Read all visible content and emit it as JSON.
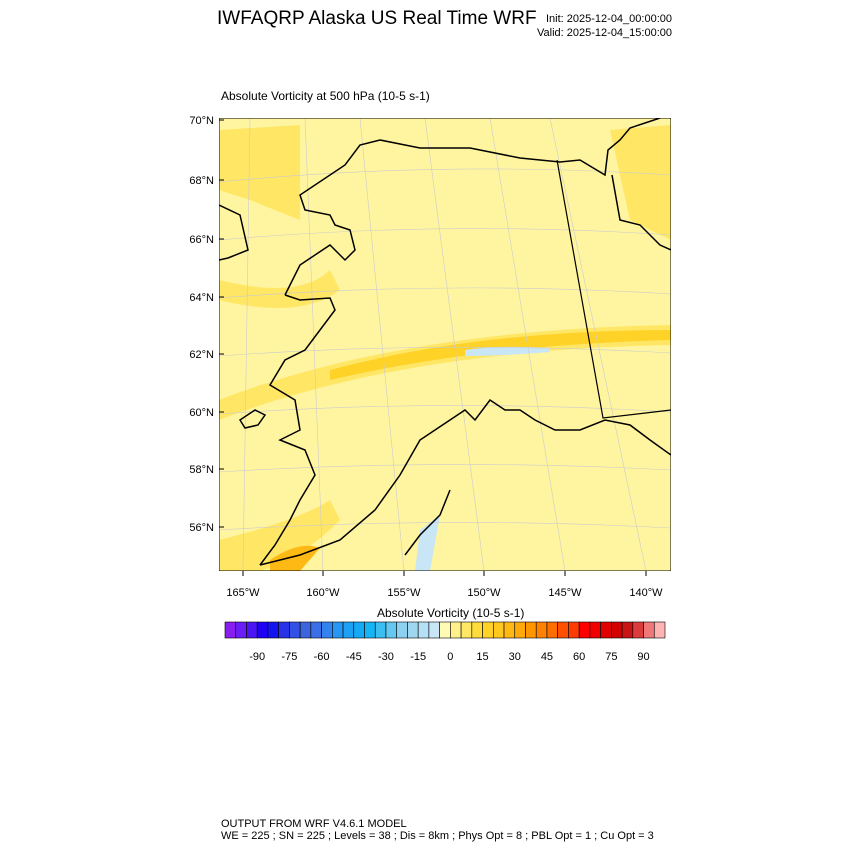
{
  "header": {
    "title": "IWFAQRP Alaska US Real Time WRF",
    "init": "Init: 2025-12-04_00:00:00",
    "valid": "Valid: 2025-12-04_15:00:00"
  },
  "map": {
    "subtitle": "Absolute Vorticity at 500 hPa   (10-5 s-1)",
    "lat_labels": [
      "70°N",
      "68°N",
      "66°N",
      "64°N",
      "62°N",
      "60°N",
      "58°N",
      "56°N"
    ],
    "lon_labels": [
      "165°W",
      "160°W",
      "155°W",
      "150°W",
      "145°W",
      "140°W"
    ],
    "background_color": "#fff5a0",
    "band_colors": [
      "#ffe664",
      "#ffd228",
      "#ffb914",
      "#c8e6f5"
    ]
  },
  "colorbar": {
    "title": "Absolute Vorticity  (10-5 s-1)",
    "labels": [
      "-90",
      "-75",
      "-60",
      "-45",
      "-30",
      "-15",
      "0",
      "15",
      "30",
      "45",
      "60",
      "75",
      "90"
    ],
    "colors": [
      "#8a1ef0",
      "#6a1ef5",
      "#4a14f5",
      "#1e00f5",
      "#1414f0",
      "#2832e6",
      "#3250e6",
      "#3c64dc",
      "#3c6ee6",
      "#3282f0",
      "#2896f5",
      "#1ea0f5",
      "#14aaf5",
      "#14b4f5",
      "#3cbef0",
      "#64c8f0",
      "#8cd2f0",
      "#a0d7f0",
      "#b4e1f5",
      "#c8e6f5",
      "#fffab4",
      "#fff08c",
      "#ffe664",
      "#ffdc3c",
      "#ffd228",
      "#ffc81e",
      "#ffb914",
      "#ffaa0a",
      "#ff9600",
      "#ff8200",
      "#ff6e00",
      "#ff5000",
      "#ff3c00",
      "#ff0000",
      "#f00000",
      "#e10000",
      "#d20000",
      "#c81414",
      "#dc3c3c",
      "#f07878",
      "#ffb4b4"
    ]
  },
  "footer": {
    "line1": "OUTPUT FROM WRF V4.6.1 MODEL",
    "line2": "WE = 225 ; SN = 225 ; Levels = 38 ; Dis = 8km ; Phys Opt = 8 ; PBL Opt = 1 ; Cu Opt = 3"
  }
}
